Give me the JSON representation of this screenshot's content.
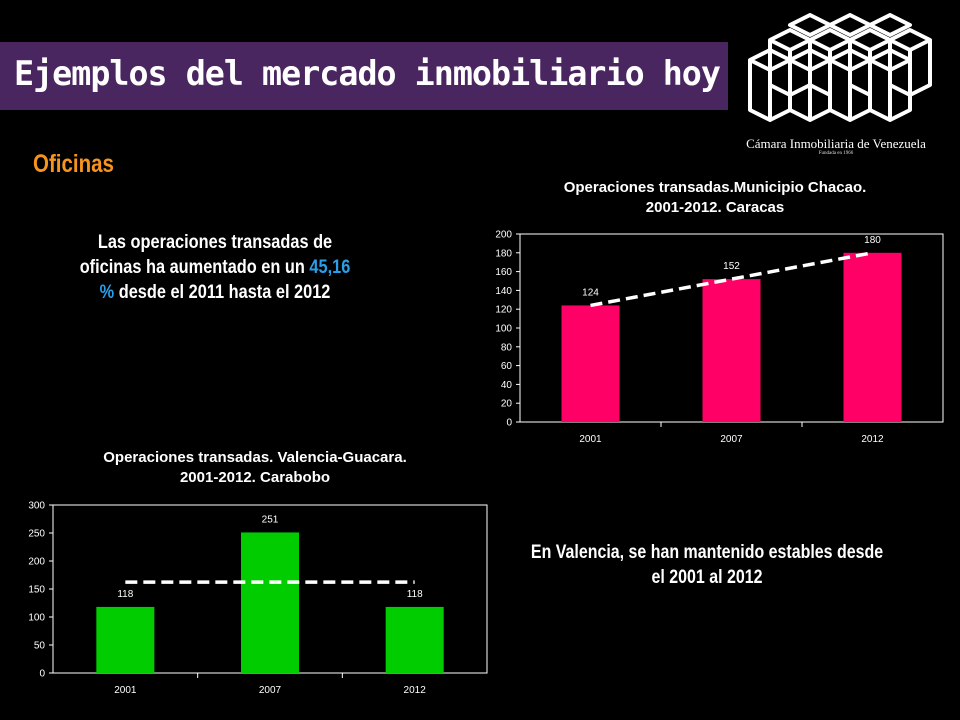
{
  "header": {
    "title": "Ejemplos del mercado inmobiliario hoy"
  },
  "logo": {
    "name": "Cámara Inmobiliaria de Venezuela",
    "subtitle": "Fundada en 1966"
  },
  "section_label": "Oficinas",
  "notes": {
    "chacao_before": "Las operaciones transadas de oficinas  ha aumentado en un ",
    "chacao_highlight": "45,16 % ",
    "chacao_after": "desde el 2011 hasta el 2012",
    "valencia": "En Valencia, se han mantenido estables desde el 2001 al 2012"
  },
  "colors": {
    "title_bg": "#4a2660",
    "section": "#f7941d",
    "highlight": "#2a9fe8",
    "bar_chacao": "#ff0066",
    "bar_valencia": "#00cc00"
  },
  "chart_data": [
    {
      "type": "bar",
      "title_line1": "Operaciones transadas.Municipio Chacao.",
      "title_line2": "2001-2012. Caracas",
      "categories": [
        "2001",
        "2007",
        "2012"
      ],
      "values": [
        124,
        152,
        180
      ],
      "ylim": [
        0,
        200
      ],
      "yticks": [
        0,
        20,
        40,
        60,
        80,
        100,
        120,
        140,
        160,
        180,
        200
      ],
      "trendline": "dashed linear",
      "grid": false
    },
    {
      "type": "bar",
      "title_line1": "Operaciones transadas. Valencia-Guacara.",
      "title_line2": "2001-2012. Carabobo",
      "categories": [
        "2001",
        "2007",
        "2012"
      ],
      "values": [
        118,
        251,
        118
      ],
      "ylim": [
        0,
        300
      ],
      "yticks": [
        0,
        50,
        100,
        150,
        200,
        250,
        300
      ],
      "trendline": "dashed horizontal average",
      "grid": false
    }
  ]
}
